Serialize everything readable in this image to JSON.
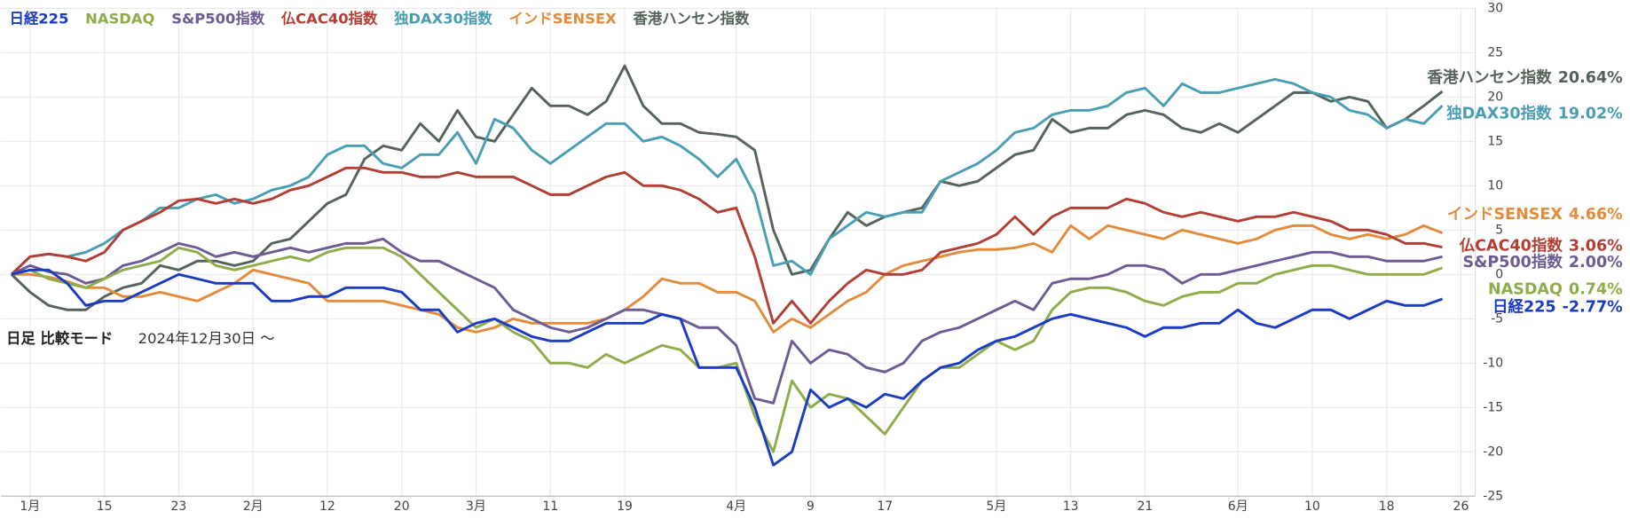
{
  "chart_data": {
    "type": "line",
    "categories": [
      null,
      "1月",
      null,
      null,
      null,
      "15",
      null,
      null,
      null,
      "23",
      null,
      null,
      null,
      "2月",
      null,
      null,
      null,
      "12",
      null,
      null,
      null,
      "20",
      null,
      null,
      null,
      "3月",
      null,
      null,
      null,
      "11",
      null,
      null,
      null,
      "19",
      null,
      null,
      null,
      null,
      null,
      "4月",
      null,
      null,
      null,
      "9",
      null,
      null,
      null,
      "17",
      null,
      null,
      null,
      null,
      null,
      "5月",
      null,
      null,
      null,
      "13",
      null,
      null,
      null,
      "21",
      null,
      null,
      null,
      null,
      "6月",
      null,
      null,
      null,
      "10",
      null,
      null,
      null,
      "18",
      null,
      null,
      null,
      "26"
    ],
    "series": [
      {
        "name": "日経225",
        "color": "#1a3cc4",
        "values": [
          0,
          0.5,
          0.5,
          -1,
          -3.5,
          -3,
          -3,
          -2,
          -1,
          0,
          -0.5,
          -1,
          -1,
          -1,
          -3,
          -3,
          -2.5,
          -2.5,
          -1.5,
          -1.5,
          -1.5,
          -2,
          -4,
          -4,
          -6.5,
          -5.5,
          -5,
          -6,
          -7,
          -7.5,
          -7.5,
          -6.5,
          -5.5,
          -5.5,
          -5.5,
          -4.5,
          -5,
          -10.5,
          -10.5,
          -10.5,
          -15,
          -21.5,
          -20,
          -13,
          -15,
          -14,
          -15,
          -13.5,
          -14,
          -12,
          -10.5,
          -10,
          -8.5,
          -7.5,
          -7,
          -6,
          -5,
          -4.5,
          -5,
          -5.5,
          -6,
          -7,
          -6,
          -6,
          -5.5,
          -5.5,
          -4,
          -5.5,
          -6,
          -5,
          -4,
          -4,
          -5,
          -4,
          -3,
          -3.5,
          -3.5,
          -2.77,
          null
        ],
        "value_labels": [
          null,
          null,
          null,
          null,
          null,
          null,
          null,
          null,
          null,
          null,
          null,
          null,
          null,
          null,
          null,
          null,
          null,
          null,
          null,
          null,
          null,
          null,
          null,
          null,
          null,
          null,
          null,
          null,
          null,
          null,
          null,
          null,
          null,
          null,
          null,
          null,
          null,
          null,
          null,
          null,
          null,
          null,
          null,
          null,
          null,
          null,
          null,
          null,
          null,
          null,
          null,
          null,
          null,
          null,
          null,
          null,
          null,
          null,
          null,
          null,
          null,
          null,
          null,
          null,
          null,
          null,
          null,
          null,
          null,
          null,
          null,
          null,
          null,
          null,
          null,
          null,
          null,
          "-2.77%",
          null
        ]
      },
      {
        "name": "NASDAQ",
        "color": "#8fac4b",
        "values": [
          0,
          0.5,
          -0.5,
          -1,
          -1.5,
          -0.5,
          0.5,
          1,
          1.5,
          3,
          2.5,
          1,
          0.5,
          1,
          1.5,
          2,
          1.5,
          2.5,
          3,
          3,
          3,
          2,
          0,
          -2,
          -4,
          -6,
          -5,
          -6.5,
          -7.5,
          -10,
          -10,
          -10.5,
          -9,
          -10,
          -9,
          -8,
          -8.5,
          -10.5,
          -10.5,
          -10,
          -16,
          -20,
          -12,
          -15,
          -13.5,
          -14,
          -16,
          -18,
          -15,
          -12,
          -10.5,
          -10.5,
          -9,
          -7.5,
          -8.5,
          -7.5,
          -4,
          -2,
          -1.5,
          -1.5,
          -2,
          -3,
          -3.5,
          -2.5,
          -2,
          -2,
          -1,
          -1,
          0,
          0.5,
          1,
          1,
          0.5,
          0,
          0,
          0,
          0,
          0.74,
          null
        ],
        "value_labels": [
          null,
          null,
          null,
          null,
          null,
          null,
          null,
          null,
          null,
          null,
          null,
          null,
          null,
          null,
          null,
          null,
          null,
          null,
          null,
          null,
          null,
          null,
          null,
          null,
          null,
          null,
          null,
          null,
          null,
          null,
          null,
          null,
          null,
          null,
          null,
          null,
          null,
          null,
          null,
          null,
          null,
          null,
          null,
          null,
          null,
          null,
          null,
          null,
          null,
          null,
          null,
          null,
          null,
          null,
          null,
          null,
          null,
          null,
          null,
          null,
          null,
          null,
          null,
          null,
          null,
          null,
          null,
          null,
          null,
          null,
          null,
          null,
          null,
          null,
          null,
          null,
          null,
          "0.74%",
          null
        ]
      },
      {
        "name": "S&P500指数",
        "color": "#6e5b95",
        "values": [
          0,
          1,
          0.3,
          0,
          -1,
          -0.5,
          1,
          1.5,
          2.5,
          3.5,
          3,
          2,
          2.5,
          2,
          2.5,
          3,
          2.5,
          3,
          3.5,
          3.5,
          4,
          2.5,
          1.5,
          1.5,
          0.5,
          -0.5,
          -1.5,
          -4,
          -5,
          -6,
          -6.5,
          -6,
          -5,
          -4,
          -4,
          -4.5,
          -5,
          -6,
          -6,
          -8,
          -14,
          -14.5,
          -7.5,
          -10,
          -8.5,
          -9,
          -10.5,
          -11,
          -10,
          -7.5,
          -6.5,
          -6,
          -5,
          -4,
          -3,
          -4,
          -1,
          -0.5,
          -0.5,
          0,
          1,
          1,
          0.5,
          -1,
          0,
          0,
          0.5,
          1,
          1.5,
          2,
          2.5,
          2.5,
          2,
          2,
          1.5,
          1.5,
          1.5,
          2.0,
          null
        ],
        "value_labels": [
          null,
          null,
          null,
          null,
          null,
          null,
          null,
          null,
          null,
          null,
          null,
          null,
          null,
          null,
          null,
          null,
          null,
          null,
          null,
          null,
          null,
          null,
          null,
          null,
          null,
          null,
          null,
          null,
          null,
          null,
          null,
          null,
          null,
          null,
          null,
          null,
          null,
          null,
          null,
          null,
          null,
          null,
          null,
          null,
          null,
          null,
          null,
          null,
          null,
          null,
          null,
          null,
          null,
          null,
          null,
          null,
          null,
          null,
          null,
          null,
          null,
          null,
          null,
          null,
          null,
          null,
          null,
          null,
          null,
          null,
          null,
          null,
          null,
          null,
          null,
          null,
          null,
          "2.00%",
          null
        ]
      },
      {
        "name": "仏CAC40指数",
        "color": "#b33e34",
        "values": [
          0,
          2,
          2.3,
          2,
          1.5,
          2.5,
          5,
          6,
          7,
          8.3,
          8.5,
          8,
          8.5,
          8,
          8.5,
          9.5,
          10,
          11,
          12,
          12,
          11.5,
          11.5,
          11,
          11,
          11.5,
          11,
          11,
          11,
          10,
          9,
          9,
          10,
          11,
          11.5,
          10,
          10,
          9.5,
          8.5,
          7,
          7.5,
          2,
          -5.5,
          -3,
          -5.5,
          -3,
          -1,
          0.5,
          0,
          0,
          0.5,
          2.5,
          3,
          3.5,
          4.5,
          6.5,
          4.5,
          6.5,
          7.5,
          7.5,
          7.5,
          8.5,
          8,
          7,
          6.5,
          7,
          6.5,
          6,
          6.5,
          6.5,
          7,
          6.5,
          6,
          5,
          5,
          4.5,
          3.5,
          3.5,
          3.06,
          null
        ],
        "value_labels": [
          null,
          null,
          null,
          null,
          null,
          null,
          null,
          null,
          null,
          null,
          null,
          null,
          null,
          null,
          null,
          null,
          null,
          null,
          null,
          null,
          null,
          null,
          null,
          null,
          null,
          null,
          null,
          null,
          null,
          null,
          null,
          null,
          null,
          null,
          null,
          null,
          null,
          null,
          null,
          null,
          null,
          null,
          null,
          null,
          null,
          null,
          null,
          null,
          null,
          null,
          null,
          null,
          null,
          null,
          null,
          null,
          null,
          null,
          null,
          null,
          null,
          null,
          null,
          null,
          null,
          null,
          null,
          null,
          null,
          null,
          null,
          null,
          null,
          null,
          null,
          null,
          null,
          "3.06%",
          null
        ]
      },
      {
        "name": "独DAX30指数",
        "color": "#4a9eb4",
        "values": [
          0,
          2,
          2.3,
          2,
          2.5,
          3.5,
          5,
          6,
          7.5,
          7.5,
          8.5,
          9,
          8,
          8.5,
          9.5,
          10,
          11,
          13.5,
          14.5,
          14.5,
          12.5,
          12,
          13.5,
          13.5,
          16,
          12.5,
          17.5,
          16.5,
          14,
          12.5,
          14,
          15.5,
          17,
          17,
          15,
          15.5,
          14.5,
          13,
          11,
          13,
          9,
          1,
          1.5,
          0,
          4,
          5.5,
          7,
          6.5,
          7,
          7,
          10.5,
          11.5,
          12.5,
          14,
          16,
          16.5,
          18,
          18.5,
          18.5,
          19,
          20.5,
          21,
          19,
          21.5,
          20.5,
          20.5,
          21,
          21.5,
          22,
          21.5,
          20.5,
          20,
          18.5,
          18,
          16.5,
          17.5,
          17,
          19.02,
          null
        ],
        "value_labels": [
          null,
          null,
          null,
          null,
          null,
          null,
          null,
          null,
          null,
          null,
          null,
          null,
          null,
          null,
          null,
          null,
          null,
          null,
          null,
          null,
          null,
          null,
          null,
          null,
          null,
          null,
          null,
          null,
          null,
          null,
          null,
          null,
          null,
          null,
          null,
          null,
          null,
          null,
          null,
          null,
          null,
          null,
          null,
          null,
          null,
          null,
          null,
          null,
          null,
          null,
          null,
          null,
          null,
          null,
          null,
          null,
          null,
          null,
          null,
          null,
          null,
          null,
          null,
          null,
          null,
          null,
          null,
          null,
          null,
          null,
          null,
          null,
          null,
          null,
          null,
          null,
          null,
          "19.02%",
          null
        ]
      },
      {
        "name": "インドSENSEX",
        "color": "#e38b3c",
        "values": [
          0,
          0,
          -0.3,
          -0.8,
          -1.5,
          -1.5,
          -2.5,
          -2.5,
          -2,
          -2.5,
          -3,
          -2,
          -1,
          0.5,
          0,
          -0.5,
          -1,
          -3,
          -3,
          -3,
          -3,
          -3.5,
          -4,
          -4.5,
          -6,
          -6.5,
          -6,
          -5,
          -5.5,
          -5.5,
          -5.5,
          -5.5,
          -5,
          -4,
          -2.5,
          -0.5,
          -1,
          -1,
          -2,
          -2,
          -3,
          -6.5,
          -5,
          -6,
          -4.5,
          -3,
          -2,
          0,
          1,
          1.5,
          2,
          2.5,
          2.8,
          2.8,
          3,
          3.5,
          2.5,
          5.5,
          4,
          5.5,
          5,
          4.5,
          4,
          5,
          4.5,
          4,
          3.5,
          4,
          5,
          5.5,
          5.5,
          4.5,
          4,
          4.5,
          4,
          4.5,
          5.5,
          4.66,
          null
        ],
        "value_labels": [
          null,
          null,
          null,
          null,
          null,
          null,
          null,
          null,
          null,
          null,
          null,
          null,
          null,
          null,
          null,
          null,
          null,
          null,
          null,
          null,
          null,
          null,
          null,
          null,
          null,
          null,
          null,
          null,
          null,
          null,
          null,
          null,
          null,
          null,
          null,
          null,
          null,
          null,
          null,
          null,
          null,
          null,
          null,
          null,
          null,
          null,
          null,
          null,
          null,
          null,
          null,
          null,
          null,
          null,
          null,
          null,
          null,
          null,
          null,
          null,
          null,
          null,
          null,
          null,
          null,
          null,
          null,
          null,
          null,
          null,
          null,
          null,
          null,
          null,
          null,
          null,
          null,
          "4.66%",
          null
        ]
      },
      {
        "name": "香港ハンセン指数",
        "color": "#55635a",
        "values": [
          0,
          -2,
          -3.5,
          -4,
          -4,
          -2.5,
          -1.5,
          -1,
          1,
          0.5,
          1.5,
          1.5,
          1,
          1.5,
          3.5,
          4,
          6,
          8,
          9,
          13,
          14.5,
          14,
          17,
          15,
          18.5,
          15.5,
          15,
          18,
          21,
          19,
          19,
          18,
          19.5,
          23.5,
          19,
          17,
          17,
          16,
          15.8,
          15.5,
          14,
          5,
          0,
          0.5,
          4,
          7,
          5.5,
          6.5,
          7,
          7.5,
          10.5,
          10,
          10.5,
          12,
          13.5,
          14,
          17.5,
          16,
          16.5,
          16.5,
          18,
          18.5,
          18,
          16.5,
          16,
          17,
          16,
          17.5,
          19,
          20.5,
          20.5,
          19.5,
          20,
          19.5,
          16.5,
          17.5,
          19,
          20.64,
          null
        ],
        "value_labels": [
          null,
          null,
          null,
          null,
          null,
          null,
          null,
          null,
          null,
          null,
          null,
          null,
          null,
          null,
          null,
          null,
          null,
          null,
          null,
          null,
          null,
          null,
          null,
          null,
          null,
          null,
          null,
          null,
          null,
          null,
          null,
          null,
          null,
          null,
          null,
          null,
          null,
          null,
          null,
          null,
          null,
          null,
          null,
          null,
          null,
          null,
          null,
          null,
          null,
          null,
          null,
          null,
          null,
          null,
          null,
          null,
          null,
          null,
          null,
          null,
          null,
          null,
          null,
          null,
          null,
          null,
          null,
          null,
          null,
          null,
          null,
          null,
          null,
          null,
          null,
          null,
          null,
          "20.64%",
          null
        ]
      }
    ],
    "ylim": [
      -25,
      30
    ],
    "yticks": [
      -25,
      -20,
      -15,
      -10,
      -5,
      0,
      5,
      10,
      15,
      20,
      25,
      30
    ],
    "grid": true,
    "legend": "top-left",
    "annotations": [
      "日足 比較モード",
      "2024年12月30日 ～"
    ]
  }
}
